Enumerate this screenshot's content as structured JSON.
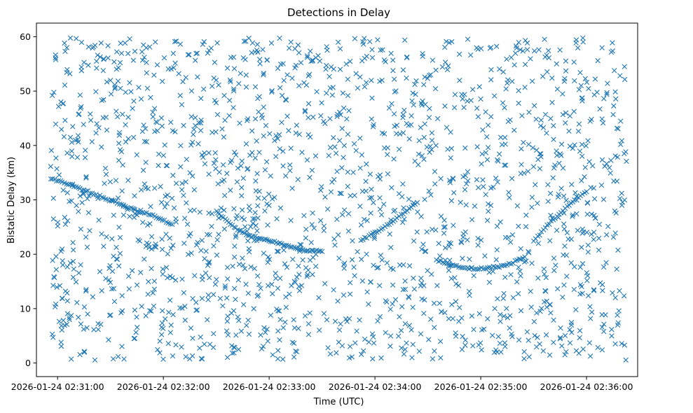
{
  "chart_data": {
    "type": "scatter",
    "title": "Detections in Delay",
    "xlabel": "Time (UTC)",
    "ylabel": "Bistatic Delay (km)",
    "marker": "x",
    "color": "#1f77b4",
    "grid": false,
    "legend": "none",
    "x_unit": "seconds from 2026-01-24 02:30:00 UTC",
    "xlim": [
      48,
      389
    ],
    "ylim": [
      -2.5,
      62.5
    ],
    "x_ticks": [
      60,
      120,
      180,
      240,
      300,
      360
    ],
    "x_tick_labels": [
      "2026-01-24 02:31:00",
      "2026-01-24 02:32:00",
      "2026-01-24 02:33:00",
      "2026-01-24 02:34:00",
      "2026-01-24 02:35:00",
      "2026-01-24 02:36:00"
    ],
    "y_ticks": [
      0,
      10,
      20,
      30,
      40,
      50,
      60
    ],
    "y_tick_labels": [
      "0",
      "10",
      "20",
      "30",
      "40",
      "50",
      "60"
    ],
    "noise": {
      "count": 1750,
      "x_range": [
        56,
        383
      ],
      "y_range": [
        0.5,
        59.8
      ],
      "distribution": "uniform"
    },
    "tracks": [
      {
        "x": [
          56,
          65,
          75,
          85,
          95,
          105,
          115,
          125
        ],
        "y": [
          34.0,
          33.0,
          31.8,
          30.5,
          29.3,
          28.0,
          27.0,
          25.5
        ]
      },
      {
        "x": [
          150,
          155,
          160,
          165,
          170,
          175,
          180,
          185,
          190,
          195,
          200,
          205,
          210
        ],
        "y": [
          28.0,
          26.5,
          25.0,
          24.0,
          23.3,
          22.9,
          22.6,
          22.0,
          21.5,
          21.1,
          20.8,
          20.6,
          20.5
        ]
      },
      {
        "x": [
          275,
          283,
          290,
          297,
          305,
          315,
          325
        ],
        "y": [
          19.0,
          18.0,
          17.5,
          17.3,
          17.5,
          18.0,
          19.5
        ]
      },
      {
        "x": [
          232,
          240,
          248,
          256,
          264
        ],
        "y": [
          22.5,
          24.0,
          25.5,
          27.5,
          29.5
        ]
      },
      {
        "x": [
          330,
          340,
          350,
          360
        ],
        "y": [
          22.5,
          26.0,
          29.0,
          31.5
        ]
      }
    ]
  }
}
